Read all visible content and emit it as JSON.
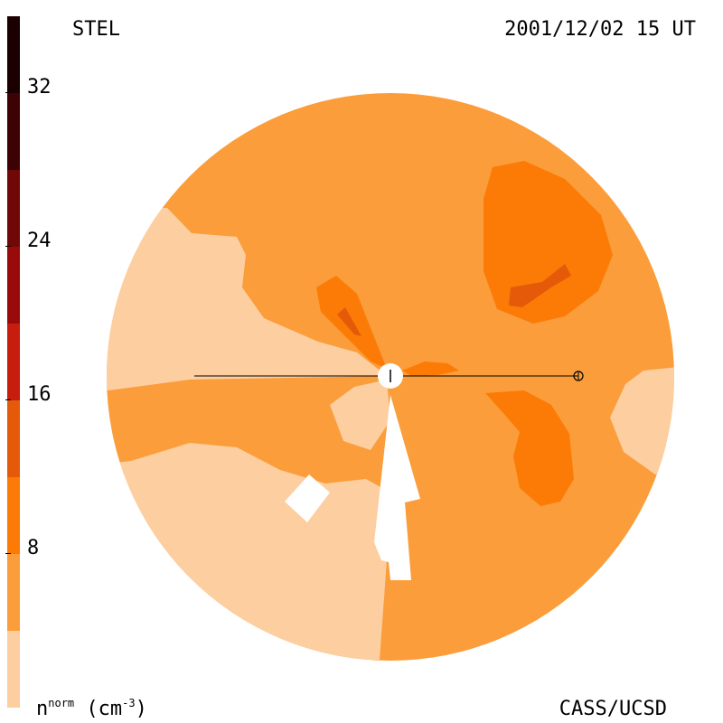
{
  "header": {
    "station": "STEL",
    "timestamp": "2001/12/02 15 UT"
  },
  "footer": {
    "units_base": "n",
    "units_sup": "norm",
    "units_open": " (cm",
    "units_exp": "-3",
    "units_close": ")",
    "credit": "CASS/UCSD"
  },
  "chart_data": {
    "type": "heatmap",
    "title": "",
    "colorbar": {
      "label": "nnorm (cm-3)",
      "range": [
        0,
        36
      ],
      "levels": [
        0,
        4,
        8,
        12,
        16,
        20,
        24,
        28,
        32,
        36
      ],
      "ticks": [
        8,
        16,
        24,
        32
      ],
      "tick_labels": [
        "8",
        "16",
        "24",
        "32"
      ],
      "colors": [
        "#fdcea0",
        "#fb9d3a",
        "#fb7b06",
        "#e55a09",
        "#c61d0f",
        "#980b0a",
        "#700807",
        "#3d0203",
        "#1a0000"
      ]
    },
    "regions": [
      {
        "name": "background",
        "level_index": 1
      },
      {
        "name": "low-density sectors",
        "level_index": 0
      },
      {
        "name": "enhanced upper-right",
        "level_index": 2
      },
      {
        "name": "peak upper-right",
        "level_index": 3
      },
      {
        "name": "enhanced lower-right",
        "level_index": 2
      },
      {
        "name": "enhanced near sun upper-left",
        "level_index": 2
      },
      {
        "name": "peak near sun upper-left",
        "level_index": 3
      },
      {
        "name": "enhanced near sun right",
        "level_index": 2
      }
    ],
    "markers": [
      "sun",
      "earth"
    ]
  }
}
